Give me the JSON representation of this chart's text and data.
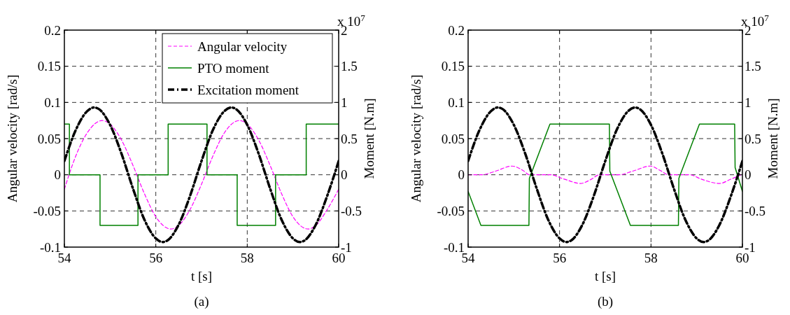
{
  "chart_data": [
    {
      "type": "line",
      "xlabel": "t [s]",
      "ylabel": "Angular velocity [rad/s]",
      "y2label": "Moment [N.m]",
      "annotations": [
        "x 10$^{7}$",
        "(a)"
      ],
      "xlim": [
        54,
        60
      ],
      "xticks": [
        54,
        56,
        58,
        60
      ],
      "ylim": [
        -0.1,
        0.2
      ],
      "yticks": [
        -0.1,
        -0.05,
        0,
        0.05,
        0.1,
        0.15,
        0.2
      ],
      "y2lim": [
        -1,
        2
      ],
      "y2ticks": [
        -1,
        -0.5,
        0,
        0.5,
        1,
        1.5,
        2
      ],
      "grid": true,
      "legend": "top right",
      "series": [
        {
          "name": "Angular velocity",
          "color": "#ff00ff",
          "line_style": "dashed",
          "x": [
            54,
            54.25,
            54.5,
            54.83,
            55,
            55.25,
            55.5,
            55.75,
            56,
            56.33,
            56.5,
            56.75,
            57,
            57.25,
            57.5,
            57.83,
            58,
            58.25,
            58.5,
            58.75,
            59,
            59.33,
            59.5,
            59.75,
            60
          ],
          "values": [
            -0.02,
            0.026,
            0.058,
            0.075,
            0.07,
            0.048,
            0.013,
            -0.026,
            -0.058,
            -0.075,
            -0.07,
            -0.048,
            -0.013,
            0.026,
            0.058,
            0.075,
            0.07,
            0.048,
            0.013,
            -0.026,
            -0.058,
            -0.075,
            -0.07,
            -0.048,
            -0.02
          ]
        },
        {
          "name": "PTO moment",
          "color": "#008000",
          "line_style": "solid",
          "axis": "y2",
          "x": [
            54,
            54.11,
            54.11,
            54.78,
            54.78,
            55.61,
            55.61,
            56.27,
            56.27,
            57.12,
            57.12,
            57.78,
            57.78,
            58.62,
            58.62,
            59.29,
            59.29,
            60
          ],
          "values": [
            0.7,
            0.7,
            0,
            0,
            -0.7,
            -0.7,
            0,
            0,
            0.7,
            0.7,
            0,
            0,
            -0.7,
            -0.7,
            0,
            0,
            0.7,
            0.7
          ]
        },
        {
          "name": "Excitation moment",
          "color": "#000000",
          "line_style": "dashdot",
          "axis": "y2",
          "x": [
            54,
            54.25,
            54.5,
            54.65,
            54.75,
            55,
            55.25,
            55.5,
            55.75,
            56,
            56.15,
            56.25,
            56.5,
            56.75,
            57,
            57.25,
            57.5,
            57.65,
            57.75,
            58,
            58.25,
            58.5,
            58.75,
            59,
            59.15,
            59.25,
            59.5,
            59.75,
            60
          ],
          "values": [
            0.19,
            0.62,
            0.88,
            0.93,
            0.91,
            0.69,
            0.29,
            -0.19,
            -0.62,
            -0.88,
            -0.93,
            -0.91,
            -0.69,
            -0.29,
            0.19,
            0.62,
            0.88,
            0.93,
            0.91,
            0.69,
            0.29,
            -0.19,
            -0.62,
            -0.88,
            -0.93,
            -0.91,
            -0.69,
            -0.29,
            0.19
          ]
        }
      ]
    },
    {
      "type": "line",
      "xlabel": "t [s]",
      "ylabel": "Angular velocity [rad/s]",
      "y2label": "Moment [N.m]",
      "annotations": [
        "x 10$^{7}$",
        "(b)"
      ],
      "xlim": [
        54,
        60
      ],
      "xticks": [
        54,
        56,
        58,
        60
      ],
      "ylim": [
        -0.1,
        0.2
      ],
      "yticks": [
        -0.1,
        -0.05,
        0,
        0.05,
        0.1,
        0.15,
        0.2
      ],
      "y2lim": [
        -1,
        2
      ],
      "y2ticks": [
        -1,
        -0.5,
        0,
        0.5,
        1,
        1.5,
        2
      ],
      "grid": true,
      "series": [
        {
          "color": "#ff00ff",
          "line_style": "dashed",
          "x": [
            54,
            54.3,
            54.6,
            54.96,
            55.2,
            55.34,
            55.8,
            56.1,
            56.46,
            56.7,
            56.87,
            57.3,
            57.6,
            57.99,
            58.2,
            58.38,
            58.85,
            59.1,
            59.5,
            59.75,
            59.97
          ],
          "values": [
            0,
            0,
            0.005,
            0.012,
            0.006,
            0,
            0,
            -0.006,
            -0.012,
            -0.006,
            0,
            0,
            0.005,
            0.012,
            0.006,
            0,
            0,
            -0.006,
            -0.012,
            -0.006,
            0
          ]
        },
        {
          "color": "#008000",
          "line_style": "solid",
          "axis": "y2",
          "x": [
            54,
            54.28,
            55.33,
            55.34,
            55.79,
            57.09,
            57.1,
            57.55,
            58.6,
            58.61,
            59.06,
            59.83,
            59.84,
            60
          ],
          "values": [
            -0.23,
            -0.7,
            -0.7,
            -0.05,
            0.7,
            0.7,
            0.05,
            -0.7,
            -0.7,
            -0.05,
            0.7,
            0.7,
            0.1,
            -0.23
          ]
        },
        {
          "color": "#000000",
          "line_style": "dashdot",
          "axis": "y2",
          "x": [
            54,
            54.25,
            54.5,
            54.65,
            54.75,
            55,
            55.25,
            55.5,
            55.75,
            56,
            56.15,
            56.25,
            56.5,
            56.75,
            57,
            57.25,
            57.5,
            57.65,
            57.75,
            58,
            58.25,
            58.5,
            58.75,
            59,
            59.15,
            59.25,
            59.5,
            59.75,
            60
          ],
          "values": [
            0.19,
            0.62,
            0.88,
            0.93,
            0.91,
            0.69,
            0.29,
            -0.19,
            -0.62,
            -0.88,
            -0.93,
            -0.91,
            -0.69,
            -0.29,
            0.19,
            0.62,
            0.88,
            0.93,
            0.91,
            0.69,
            0.29,
            -0.19,
            -0.62,
            -0.88,
            -0.93,
            -0.91,
            -0.69,
            -0.29,
            0.19
          ]
        }
      ]
    }
  ]
}
